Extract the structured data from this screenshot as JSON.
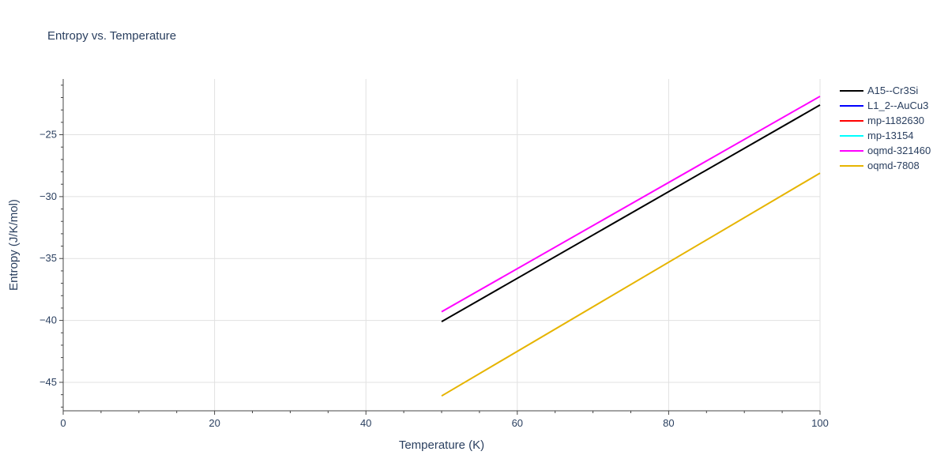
{
  "chart_data": {
    "type": "line",
    "title": "Entropy vs. Temperature",
    "xlabel": "Temperature (K)",
    "ylabel": "Entropy (J/K/mol)",
    "xlim": [
      0,
      100
    ],
    "ylim": [
      -47.3,
      -20.5
    ],
    "x_ticks": [
      0,
      20,
      40,
      60,
      80,
      100
    ],
    "x_tick_labels": [
      "0",
      "20",
      "40",
      "60",
      "80",
      "100"
    ],
    "y_ticks": [
      -45,
      -40,
      -35,
      -30,
      -25
    ],
    "y_tick_labels": [
      "−45",
      "−40",
      "−35",
      "−30",
      "−25"
    ],
    "grid": true,
    "legend_position": "right",
    "series": [
      {
        "name": "A15--Cr3Si",
        "color": "#000000",
        "x": [
          50,
          100
        ],
        "y": [
          -40.1,
          -22.6
        ]
      },
      {
        "name": "L1_2--AuCu3",
        "color": "#0000ff",
        "x": [],
        "y": []
      },
      {
        "name": "mp-1182630",
        "color": "#ff0000",
        "x": [],
        "y": []
      },
      {
        "name": "mp-13154",
        "color": "#00ffff",
        "x": [],
        "y": []
      },
      {
        "name": "oqmd-321460",
        "color": "#ff00ff",
        "x": [
          50,
          100
        ],
        "y": [
          -39.3,
          -21.9
        ]
      },
      {
        "name": "oqmd-7808",
        "color": "#e6b400",
        "x": [
          50,
          100
        ],
        "y": [
          -46.1,
          -28.1
        ]
      }
    ]
  }
}
